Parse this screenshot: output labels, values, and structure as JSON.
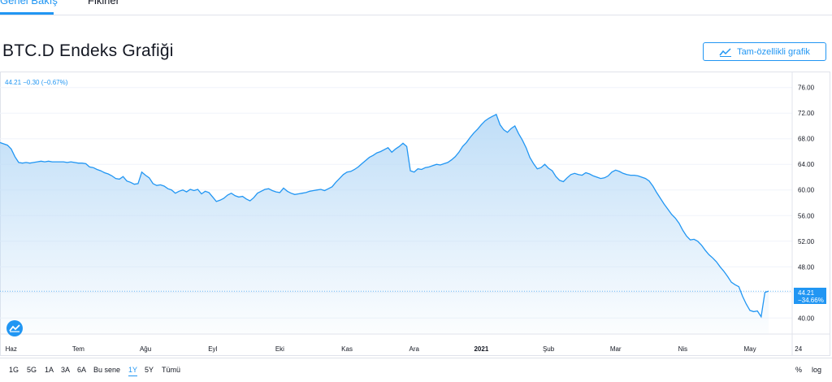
{
  "tabs": [
    {
      "label": "Genel Bakış",
      "active": true
    },
    {
      "label": "Fikirler",
      "active": false
    }
  ],
  "page_title": "BTC.D Endeks Grafiği",
  "full_chart_button": {
    "label": "Tam-özellikli grafik",
    "icon": "chart-line-icon"
  },
  "legend": {
    "text": "44.21 −0.30 (−0.67%)"
  },
  "price_badge": {
    "price": "44.21",
    "change": "−34.66%"
  },
  "time_ranges": [
    {
      "label": "1G",
      "active": false
    },
    {
      "label": "5G",
      "active": false
    },
    {
      "label": "1A",
      "active": false
    },
    {
      "label": "3A",
      "active": false
    },
    {
      "label": "6A",
      "active": false
    },
    {
      "label": "Bu sene",
      "active": false
    },
    {
      "label": "1Y",
      "active": true
    },
    {
      "label": "5Y",
      "active": false
    },
    {
      "label": "Tümü",
      "active": false
    }
  ],
  "scale_options": {
    "percent": "%",
    "log": "log"
  },
  "colors": {
    "accent": "#2196f3",
    "line": "#2196f3",
    "fill_top": "#bcdcf7",
    "grid": "#f0f3fa"
  },
  "chart_data": {
    "type": "area",
    "y_ticks": [
      "76.00",
      "72.00",
      "68.00",
      "64.00",
      "60.00",
      "56.00",
      "52.00",
      "48.00",
      "44.00",
      "40.00"
    ],
    "ylim": [
      37.5,
      78.5
    ],
    "x_tick_labels": [
      "Haz",
      "Tem",
      "Ağu",
      "Eyl",
      "Eki",
      "Kas",
      "Ara",
      "2021",
      "Şub",
      "Mar",
      "Nis",
      "May",
      "24"
    ],
    "x_tick_index": [
      3,
      21,
      39,
      57,
      75,
      93,
      111,
      129,
      147,
      165,
      183,
      201,
      214
    ],
    "last_value": 44.21,
    "values": [
      67.4,
      67.2,
      67.0,
      66.4,
      65.2,
      64.3,
      64.2,
      64.3,
      64.2,
      64.3,
      64.4,
      64.5,
      64.4,
      64.5,
      64.4,
      64.4,
      64.4,
      64.4,
      64.3,
      64.4,
      64.3,
      64.2,
      64.2,
      64.1,
      63.6,
      63.5,
      63.2,
      63.0,
      62.7,
      62.5,
      62.2,
      61.8,
      61.7,
      62.1,
      61.4,
      61.2,
      60.9,
      61.0,
      62.8,
      62.3,
      61.9,
      61.0,
      60.7,
      60.8,
      60.6,
      60.2,
      60.0,
      59.5,
      59.8,
      60.0,
      59.7,
      60.1,
      59.9,
      60.1,
      59.4,
      59.8,
      59.6,
      58.9,
      58.2,
      58.4,
      58.7,
      59.2,
      59.5,
      59.1,
      58.9,
      59.0,
      58.6,
      58.3,
      58.8,
      59.5,
      59.8,
      60.1,
      60.2,
      59.9,
      59.7,
      59.6,
      60.3,
      59.8,
      59.5,
      59.3,
      59.4,
      59.5,
      59.6,
      59.8,
      59.9,
      60.0,
      60.1,
      59.9,
      60.2,
      60.5,
      61.2,
      61.8,
      62.4,
      62.8,
      62.9,
      63.2,
      63.6,
      64.1,
      64.6,
      65.1,
      65.4,
      65.8,
      66.0,
      66.3,
      66.6,
      65.9,
      66.4,
      66.8,
      67.3,
      66.8,
      63.0,
      62.8,
      63.3,
      63.2,
      63.5,
      63.6,
      63.8,
      64.0,
      63.9,
      64.1,
      64.3,
      64.7,
      65.2,
      65.9,
      66.8,
      67.4,
      68.2,
      68.9,
      69.5,
      70.2,
      70.8,
      71.2,
      71.5,
      71.8,
      70.2,
      69.4,
      69.0,
      69.6,
      70.0,
      68.8,
      67.8,
      66.6,
      65.1,
      64.1,
      63.3,
      63.5,
      64.0,
      63.4,
      63.0,
      62.1,
      61.5,
      61.3,
      61.9,
      62.4,
      62.6,
      62.4,
      62.3,
      62.7,
      62.5,
      62.2,
      62.0,
      61.8,
      61.9,
      62.2,
      62.8,
      63.1,
      62.9,
      62.6,
      62.4,
      62.3,
      62.3,
      62.2,
      62.0,
      61.8,
      61.4,
      60.6,
      59.6,
      58.7,
      57.8,
      57.0,
      56.2,
      55.6,
      54.8,
      53.7,
      52.8,
      52.2,
      52.3,
      52.0,
      51.4,
      50.6,
      49.9,
      49.4,
      48.8,
      48.0,
      47.3,
      46.5,
      45.6,
      45.2,
      44.9,
      43.4,
      42.2,
      41.2,
      41.0,
      41.1,
      40.2,
      44.0,
      44.21
    ]
  }
}
